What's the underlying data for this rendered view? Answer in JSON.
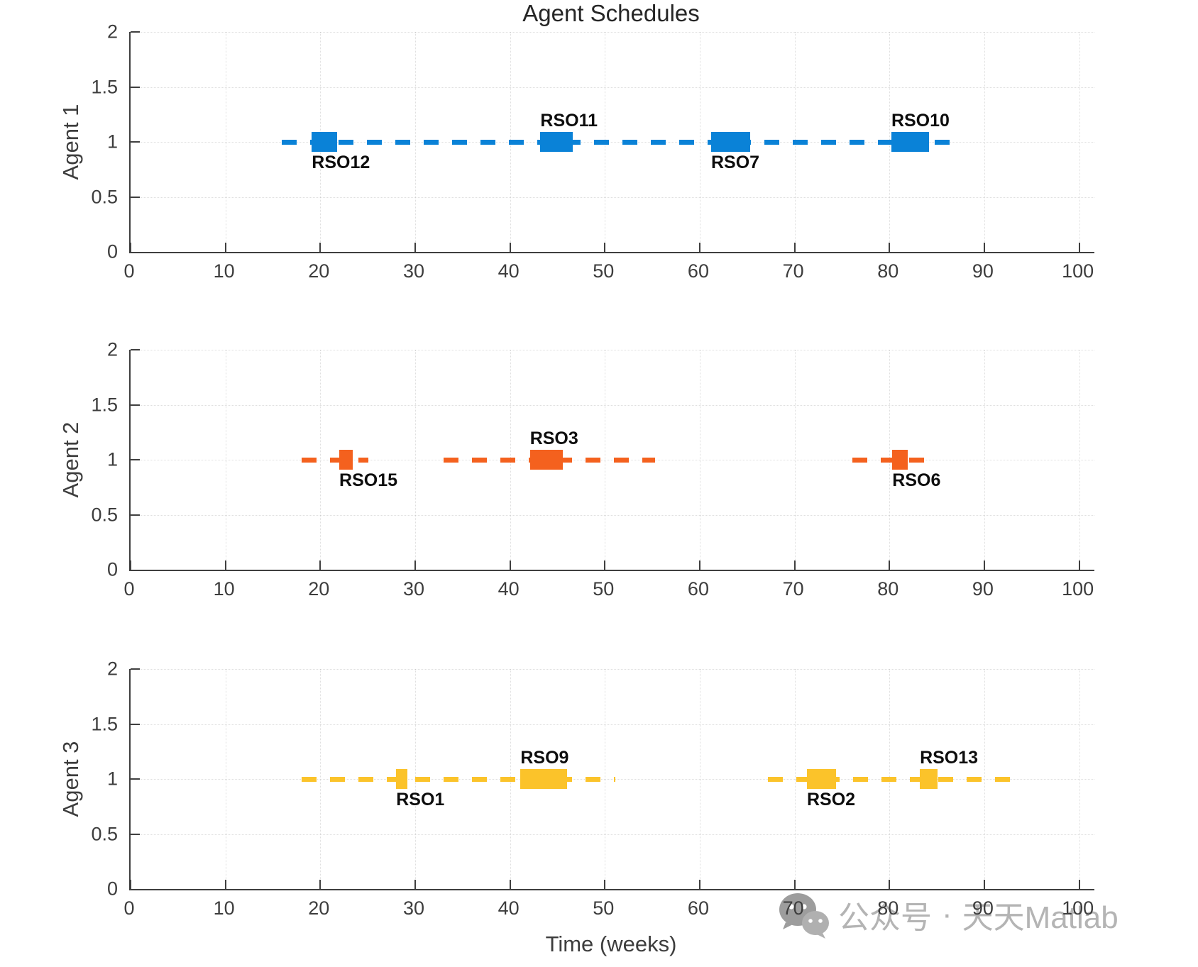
{
  "title": "Agent Schedules",
  "xlabel": "Time (weeks)",
  "axis": {
    "xlim": [
      0,
      101.6
    ],
    "ylim": [
      0,
      2
    ],
    "x_ticks": [
      0,
      10,
      20,
      30,
      40,
      50,
      60,
      70,
      80,
      90,
      100
    ],
    "x_tick_labels": [
      "0",
      "10",
      "20",
      "30",
      "40",
      "50",
      "60",
      "70",
      "80",
      "90",
      "100"
    ],
    "y_ticks": [
      0,
      0.5,
      1,
      1.5,
      2
    ],
    "y_tick_labels": [
      "0",
      "0.5",
      "1",
      "1.5",
      "2"
    ],
    "grid": "faint-dotted"
  },
  "chart_data": [
    {
      "type": "gantt",
      "ylabel": "Agent 1",
      "color": "#0a82d7",
      "line_y": 1,
      "line_style": "dashed",
      "segments": [
        [
          15.9,
          87.6
        ]
      ],
      "tasks": [
        {
          "name": "RSO12",
          "start": 19.1,
          "end": 21.8,
          "label_pos": "below"
        },
        {
          "name": "RSO11",
          "start": 43.2,
          "end": 46.6,
          "label_pos": "above"
        },
        {
          "name": "RSO7",
          "start": 61.2,
          "end": 65.3,
          "label_pos": "below"
        },
        {
          "name": "RSO10",
          "start": 80.2,
          "end": 84.2,
          "label_pos": "above"
        }
      ]
    },
    {
      "type": "gantt",
      "ylabel": "Agent 2",
      "color": "#f4611e",
      "line_y": 1,
      "line_style": "dashed",
      "segments": [
        [
          18.0,
          25.1
        ],
        [
          33.0,
          55.3
        ],
        [
          76.1,
          83.8
        ]
      ],
      "tasks": [
        {
          "name": "RSO15",
          "start": 22.0,
          "end": 23.4,
          "label_pos": "below"
        },
        {
          "name": "RSO3",
          "start": 42.1,
          "end": 45.6,
          "label_pos": "above"
        },
        {
          "name": "RSO6",
          "start": 80.3,
          "end": 81.9,
          "label_pos": "below"
        }
      ]
    },
    {
      "type": "gantt",
      "ylabel": "Agent 3",
      "color": "#fbc32a",
      "line_y": 1,
      "line_style": "dashed",
      "segments": [
        [
          18.0,
          51.1
        ],
        [
          67.2,
          92.7
        ]
      ],
      "tasks": [
        {
          "name": "RSO1",
          "start": 28.0,
          "end": 29.2,
          "label_pos": "below"
        },
        {
          "name": "RSO9",
          "start": 41.1,
          "end": 46.0,
          "label_pos": "above"
        },
        {
          "name": "RSO2",
          "start": 71.3,
          "end": 74.4,
          "label_pos": "below"
        },
        {
          "name": "RSO13",
          "start": 83.2,
          "end": 85.1,
          "label_pos": "above"
        }
      ]
    }
  ],
  "watermark": {
    "prefix": "公众号",
    "separator": "·",
    "suffix": "天天Matlab",
    "icon": "wechat-icon",
    "color": "#b4b4b4"
  }
}
